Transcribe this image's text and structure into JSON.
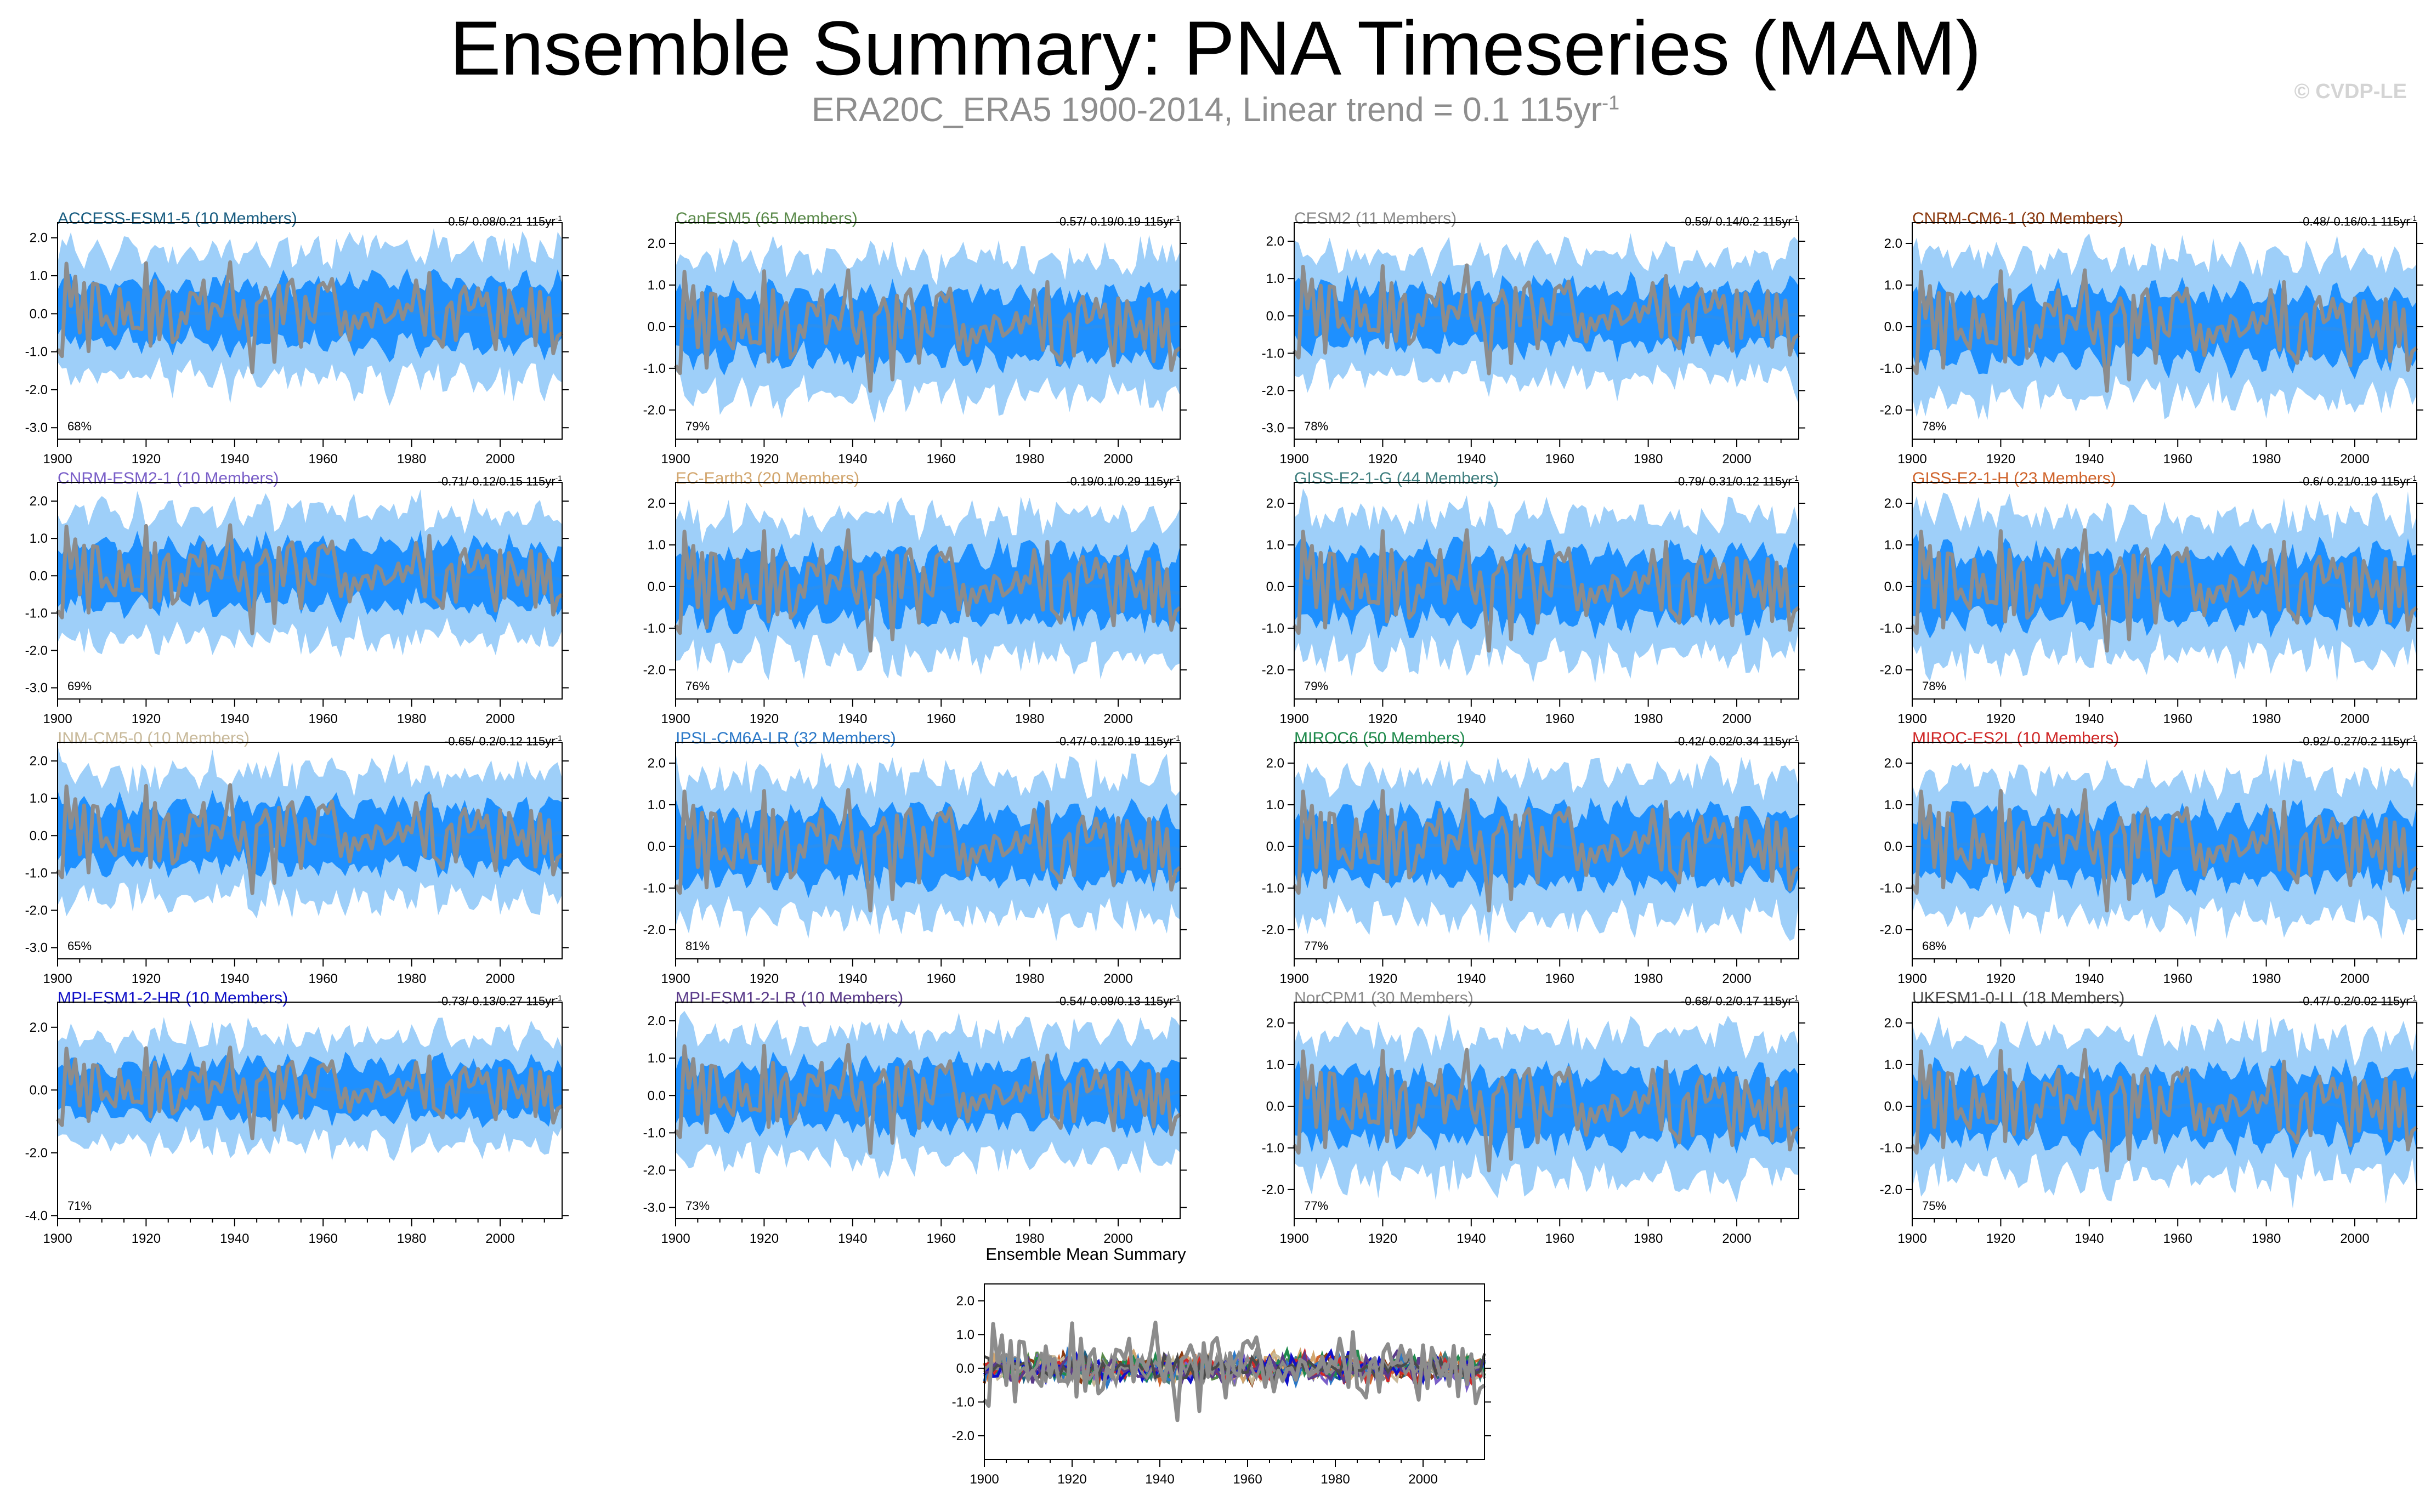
{
  "title": "Ensemble Summary: PNA Timeseries (MAM)",
  "subtitle": {
    "text": "ERA20C_ERA5 1900-2014, Linear trend = 0.1 115yr",
    "sup": "-1"
  },
  "watermark": "© CVDP-LE",
  "colors": {
    "observed": "#8c8c8c",
    "ensemble_mean": "#2a8ff0",
    "spread_inner": "#1e90ff",
    "spread_outer": "#9ecff9"
  },
  "chart_data": [
    {
      "type": "line",
      "model": "ACCESS-ESM1-5 (10 Members)",
      "name_color": "#1a5e82",
      "trend": "-0.5/-0.08/0.21 115yr",
      "trend_sup": "-1",
      "pct": "68%",
      "yticks": [
        "2.0",
        "1.0",
        "0.0",
        "-1.0",
        "-2.0",
        "-3.0"
      ],
      "ylim": [
        -3.3,
        2.4
      ],
      "xticks": [
        "1900",
        "1920",
        "1940",
        "1960",
        "1980",
        "2000"
      ],
      "xlim": [
        1900,
        2014
      ]
    },
    {
      "type": "line",
      "model": "CanESM5 (65 Members)",
      "name_color": "#5a8a4a",
      "trend": "-0.57/-0.19/0.19 115yr",
      "trend_sup": "-1",
      "pct": "79%",
      "yticks": [
        "2.0",
        "1.0",
        "0.0",
        "-1.0",
        "-2.0"
      ],
      "ylim": [
        -2.7,
        2.5
      ],
      "xticks": [
        "1900",
        "1920",
        "1940",
        "1960",
        "1980",
        "2000"
      ],
      "xlim": [
        1900,
        2014
      ]
    },
    {
      "type": "line",
      "model": "CESM2 (11 Members)",
      "name_color": "#8a8a8a",
      "trend": "-0.59/-0.14/0.2 115yr",
      "trend_sup": "-1",
      "pct": "78%",
      "yticks": [
        "2.0",
        "1.0",
        "0.0",
        "-1.0",
        "-2.0",
        "-3.0"
      ],
      "ylim": [
        -3.3,
        2.5
      ],
      "xticks": [
        "1900",
        "1920",
        "1940",
        "1960",
        "1980",
        "2000"
      ],
      "xlim": [
        1900,
        2014
      ]
    },
    {
      "type": "line",
      "model": "CNRM-CM6-1 (30 Members)",
      "name_color": "#8b3a10",
      "trend": "-0.48/-0.16/0.1 115yr",
      "trend_sup": "-1",
      "pct": "78%",
      "yticks": [
        "2.0",
        "1.0",
        "0.0",
        "-1.0",
        "-2.0"
      ],
      "ylim": [
        -2.7,
        2.5
      ],
      "xticks": [
        "1900",
        "1920",
        "1940",
        "1960",
        "1980",
        "2000"
      ],
      "xlim": [
        1900,
        2014
      ]
    },
    {
      "type": "line",
      "model": "CNRM-ESM2-1 (10 Members)",
      "name_color": "#7a5fc8",
      "trend": "-0.71/-0.12/0.15 115yr",
      "trend_sup": "-1",
      "pct": "69%",
      "yticks": [
        "2.0",
        "1.0",
        "0.0",
        "-1.0",
        "-2.0",
        "-3.0"
      ],
      "ylim": [
        -3.3,
        2.5
      ],
      "xticks": [
        "1900",
        "1920",
        "1940",
        "1960",
        "1980",
        "2000"
      ],
      "xlim": [
        1900,
        2014
      ]
    },
    {
      "type": "line",
      "model": "EC-Earth3 (20 Members)",
      "name_color": "#d2a66e",
      "trend": "-0.19/0.1/0.29 115yr",
      "trend_sup": "-1",
      "pct": "76%",
      "yticks": [
        "2.0",
        "1.0",
        "0.0",
        "-1.0",
        "-2.0"
      ],
      "ylim": [
        -2.7,
        2.5
      ],
      "xticks": [
        "1900",
        "1920",
        "1940",
        "1960",
        "1980",
        "2000"
      ],
      "xlim": [
        1900,
        2014
      ]
    },
    {
      "type": "line",
      "model": "GISS-E2-1-G (44 Members)",
      "name_color": "#3f7f7f",
      "trend": "-0.79/-0.31/0.12 115yr",
      "trend_sup": "-1",
      "pct": "79%",
      "yticks": [
        "2.0",
        "1.0",
        "0.0",
        "-1.0",
        "-2.0"
      ],
      "ylim": [
        -2.7,
        2.5
      ],
      "xticks": [
        "1900",
        "1920",
        "1940",
        "1960",
        "1980",
        "2000"
      ],
      "xlim": [
        1900,
        2014
      ]
    },
    {
      "type": "line",
      "model": "GISS-E2-1-H (23 Members)",
      "name_color": "#d0642c",
      "trend": "-0.6/-0.21/0.19 115yr",
      "trend_sup": "-1",
      "pct": "78%",
      "yticks": [
        "2.0",
        "1.0",
        "0.0",
        "-1.0",
        "-2.0"
      ],
      "ylim": [
        -2.7,
        2.5
      ],
      "xticks": [
        "1900",
        "1920",
        "1940",
        "1960",
        "1980",
        "2000"
      ],
      "xlim": [
        1900,
        2014
      ]
    },
    {
      "type": "line",
      "model": "INM-CM5-0 (10 Members)",
      "name_color": "#c8b99a",
      "trend": "-0.65/-0.2/0.12 115yr",
      "trend_sup": "-1",
      "pct": "65%",
      "yticks": [
        "2.0",
        "1.0",
        "0.0",
        "-1.0",
        "-2.0",
        "-3.0"
      ],
      "ylim": [
        -3.3,
        2.5
      ],
      "xticks": [
        "1900",
        "1920",
        "1940",
        "1960",
        "1980",
        "2000"
      ],
      "xlim": [
        1900,
        2014
      ]
    },
    {
      "type": "line",
      "model": "IPSL-CM6A-LR (32 Members)",
      "name_color": "#2a78c8",
      "trend": "-0.47/-0.12/0.19 115yr",
      "trend_sup": "-1",
      "pct": "81%",
      "yticks": [
        "2.0",
        "1.0",
        "0.0",
        "-1.0",
        "-2.0"
      ],
      "ylim": [
        -2.7,
        2.5
      ],
      "xticks": [
        "1900",
        "1920",
        "1940",
        "1960",
        "1980",
        "2000"
      ],
      "xlim": [
        1900,
        2014
      ]
    },
    {
      "type": "line",
      "model": "MIROC6 (50 Members)",
      "name_color": "#1f8a4c",
      "trend": "-0.42/-0.02/0.34 115yr",
      "trend_sup": "-1",
      "pct": "77%",
      "yticks": [
        "2.0",
        "1.0",
        "0.0",
        "-1.0",
        "-2.0"
      ],
      "ylim": [
        -2.7,
        2.5
      ],
      "xticks": [
        "1900",
        "1920",
        "1940",
        "1960",
        "1980",
        "2000"
      ],
      "xlim": [
        1900,
        2014
      ]
    },
    {
      "type": "line",
      "model": "MIROC-ES2L (10 Members)",
      "name_color": "#d02828",
      "trend": "-0.92/-0.27/0.2 115yr",
      "trend_sup": "-1",
      "pct": "68%",
      "yticks": [
        "2.0",
        "1.0",
        "0.0",
        "-1.0",
        "-2.0"
      ],
      "ylim": [
        -2.7,
        2.5
      ],
      "xticks": [
        "1900",
        "1920",
        "1940",
        "1960",
        "1980",
        "2000"
      ],
      "xlim": [
        1900,
        2014
      ]
    },
    {
      "type": "line",
      "model": "MPI-ESM1-2-HR (10 Members)",
      "name_color": "#1010c8",
      "trend": "-0.73/-0.13/0.27 115yr",
      "trend_sup": "-1",
      "pct": "71%",
      "yticks": [
        "2.0",
        "0.0",
        "-2.0",
        "-4.0"
      ],
      "ylim": [
        -4.1,
        2.8
      ],
      "xticks": [
        "1900",
        "1920",
        "1940",
        "1960",
        "1980",
        "2000"
      ],
      "xlim": [
        1900,
        2014
      ]
    },
    {
      "type": "line",
      "model": "MPI-ESM1-2-LR (10 Members)",
      "name_color": "#5a3a8a",
      "trend": "-0.54/-0.09/0.13 115yr",
      "trend_sup": "-1",
      "pct": "73%",
      "yticks": [
        "2.0",
        "1.0",
        "0.0",
        "-1.0",
        "-2.0",
        "-3.0"
      ],
      "ylim": [
        -3.3,
        2.5
      ],
      "xticks": [
        "1900",
        "1920",
        "1940",
        "1960",
        "1980",
        "2000"
      ],
      "xlim": [
        1900,
        2014
      ]
    },
    {
      "type": "line",
      "model": "NorCPM1 (30 Members)",
      "name_color": "#8a8a8a",
      "trend": "-0.68/-0.2/0.17 115yr",
      "trend_sup": "-1",
      "pct": "77%",
      "yticks": [
        "2.0",
        "1.0",
        "0.0",
        "-1.0",
        "-2.0"
      ],
      "ylim": [
        -2.7,
        2.5
      ],
      "xticks": [
        "1900",
        "1920",
        "1940",
        "1960",
        "1980",
        "2000"
      ],
      "xlim": [
        1900,
        2014
      ]
    },
    {
      "type": "line",
      "model": "UKESM1-0-LL (18 Members)",
      "name_color": "#4a4a4a",
      "trend": "-0.47/-0.2/0.02 115yr",
      "trend_sup": "-1",
      "pct": "75%",
      "yticks": [
        "2.0",
        "1.0",
        "0.0",
        "-1.0",
        "-2.0"
      ],
      "ylim": [
        -2.7,
        2.5
      ],
      "xticks": [
        "1900",
        "1920",
        "1940",
        "1960",
        "1980",
        "2000"
      ],
      "xlim": [
        1900,
        2014
      ]
    },
    {
      "type": "line",
      "model": "Ensemble Mean Summary",
      "yticks": [
        "2.0",
        "1.0",
        "0.0",
        "-1.0",
        "-2.0"
      ],
      "ylim": [
        -2.7,
        2.5
      ],
      "xticks": [
        "1900",
        "1920",
        "1940",
        "1960",
        "1980",
        "2000"
      ],
      "xlim": [
        1900,
        2014
      ],
      "series_colors": [
        "#1a5e82",
        "#5a8a4a",
        "#8a8a8a",
        "#8b3a10",
        "#7a5fc8",
        "#d2a66e",
        "#3f7f7f",
        "#d0642c",
        "#c8b99a",
        "#2a78c8",
        "#1f8a4c",
        "#d02828",
        "#1010c8",
        "#5a3a8a",
        "#8a8a8a",
        "#4a4a4a"
      ]
    }
  ]
}
